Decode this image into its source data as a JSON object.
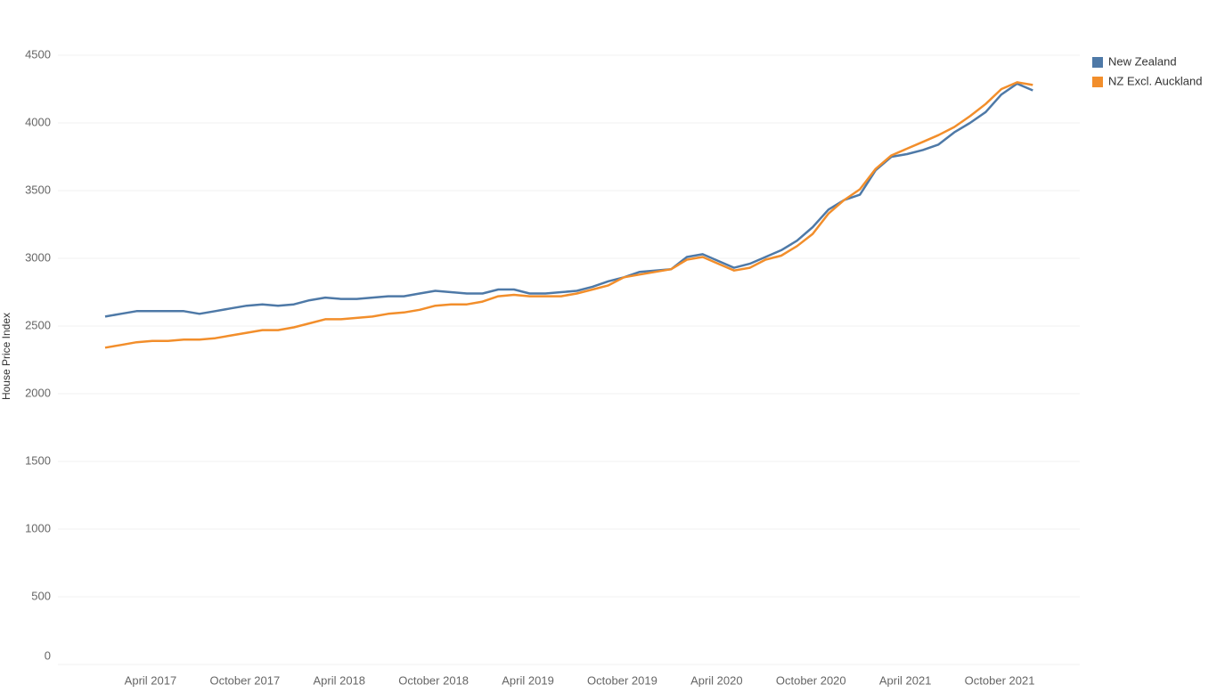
{
  "chart_data": {
    "type": "line",
    "y_label": "House Price Index",
    "categories": [
      null,
      null,
      null,
      "April 2017",
      null,
      null,
      null,
      null,
      null,
      "October 2017",
      null,
      null,
      null,
      null,
      null,
      "April 2018",
      null,
      null,
      null,
      null,
      null,
      "October 2018",
      null,
      null,
      null,
      null,
      null,
      "April 2019",
      null,
      null,
      null,
      null,
      null,
      "October 2019",
      null,
      null,
      null,
      null,
      null,
      "April 2020",
      null,
      null,
      null,
      null,
      null,
      "October 2020",
      null,
      null,
      null,
      null,
      null,
      "April 2021",
      null,
      null,
      null,
      null,
      null,
      "October 2021",
      null,
      null
    ],
    "series": [
      {
        "name": "New Zealand",
        "color": "#4e79a7",
        "values": [
          2570,
          2590,
          2610,
          2610,
          2610,
          2610,
          2590,
          2610,
          2630,
          2650,
          2660,
          2650,
          2660,
          2690,
          2710,
          2700,
          2700,
          2710,
          2720,
          2720,
          2740,
          2760,
          2750,
          2740,
          2740,
          2770,
          2770,
          2740,
          2740,
          2750,
          2760,
          2790,
          2830,
          2860,
          2900,
          2910,
          2920,
          3010,
          3030,
          2980,
          2930,
          2960,
          3010,
          3060,
          3130,
          3230,
          3360,
          3430,
          3470,
          3650,
          3750,
          3770,
          3800,
          3840,
          3930,
          4000,
          4080,
          4210,
          4290,
          4240
        ]
      },
      {
        "name": "NZ Excl. Auckland",
        "color": "#f28e2b",
        "values": [
          2340,
          2360,
          2380,
          2390,
          2390,
          2400,
          2400,
          2410,
          2430,
          2450,
          2470,
          2470,
          2490,
          2520,
          2550,
          2550,
          2560,
          2570,
          2590,
          2600,
          2620,
          2650,
          2660,
          2660,
          2680,
          2720,
          2730,
          2720,
          2720,
          2720,
          2740,
          2770,
          2800,
          2860,
          2880,
          2900,
          2920,
          2990,
          3010,
          2960,
          2910,
          2930,
          2990,
          3020,
          3090,
          3180,
          3330,
          3430,
          3510,
          3660,
          3760,
          3810,
          3860,
          3910,
          3970,
          4050,
          4140,
          4250,
          4300,
          4280
        ]
      }
    ],
    "ylim": [
      0,
      4500
    ],
    "yticks": [
      0,
      500,
      1000,
      1500,
      2000,
      2500,
      3000,
      3500,
      4000,
      4500
    ],
    "grid": true,
    "legend": "top-right"
  }
}
